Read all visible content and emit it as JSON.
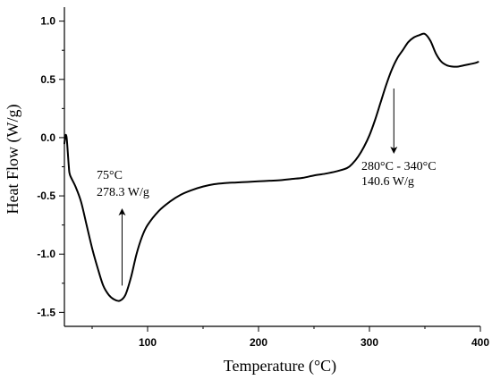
{
  "chart_data": {
    "type": "line",
    "title": "",
    "xlabel": "Temperature (°C)",
    "ylabel": "Heat Flow (W/g)",
    "xlim": [
      25,
      400
    ],
    "ylim": [
      -1.62,
      1.12
    ],
    "grid": false,
    "legend": "none",
    "x_ticks": [
      100,
      200,
      300,
      400
    ],
    "x_tick_labels": [
      "100",
      "200",
      "300",
      "400"
    ],
    "y_ticks": [
      1.0,
      0.5,
      0.0,
      -0.5,
      -1.0,
      -1.5
    ],
    "y_tick_labels": [
      "1.0",
      "0.5",
      "0.0",
      "-0.5",
      "-1.0",
      "-1.5"
    ],
    "series": [
      {
        "color": "#000000",
        "x": [
          25,
          26,
          27,
          28,
          29,
          30,
          35,
          40,
          45,
          50,
          55,
          60,
          65,
          70,
          75,
          80,
          85,
          90,
          95,
          100,
          110,
          120,
          130,
          140,
          150,
          160,
          170,
          180,
          190,
          200,
          210,
          220,
          230,
          240,
          250,
          260,
          270,
          280,
          285,
          290,
          295,
          300,
          305,
          310,
          315,
          320,
          325,
          330,
          335,
          340,
          345,
          350,
          355,
          360,
          365,
          370,
          375,
          380,
          385,
          390,
          395,
          398
        ],
        "y": [
          -0.05,
          0.02,
          0.0,
          -0.12,
          -0.25,
          -0.32,
          -0.42,
          -0.55,
          -0.75,
          -0.95,
          -1.12,
          -1.27,
          -1.35,
          -1.39,
          -1.4,
          -1.35,
          -1.2,
          -1.0,
          -0.85,
          -0.75,
          -0.63,
          -0.55,
          -0.49,
          -0.45,
          -0.42,
          -0.4,
          -0.39,
          -0.385,
          -0.38,
          -0.375,
          -0.37,
          -0.365,
          -0.355,
          -0.345,
          -0.325,
          -0.31,
          -0.29,
          -0.26,
          -0.22,
          -0.16,
          -0.08,
          0.02,
          0.15,
          0.3,
          0.45,
          0.58,
          0.68,
          0.75,
          0.82,
          0.86,
          0.88,
          0.89,
          0.83,
          0.72,
          0.65,
          0.62,
          0.61,
          0.61,
          0.62,
          0.63,
          0.64,
          0.65
        ]
      }
    ],
    "annotations": [
      {
        "line1": "75°C",
        "line2": "278.3 W/g",
        "x": 77,
        "y": -1.27,
        "arrow": "up"
      },
      {
        "line1": "280°C - 340°C",
        "line2": "140.6 W/g",
        "x": 322,
        "y": 0.5,
        "arrow": "down"
      }
    ]
  }
}
